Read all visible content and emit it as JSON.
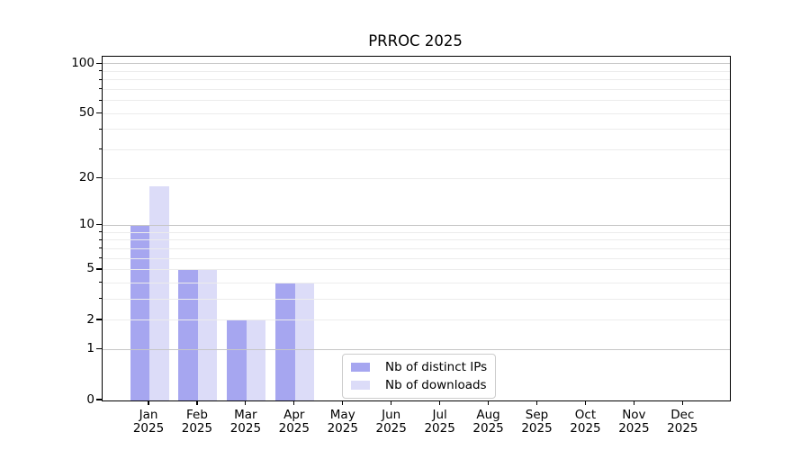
{
  "chart_data": {
    "type": "bar",
    "title": "PRROC 2025",
    "x_tick_months": [
      "Jan",
      "Feb",
      "Mar",
      "Apr",
      "May",
      "Jun",
      "Jul",
      "Aug",
      "Sep",
      "Oct",
      "Nov",
      "Dec"
    ],
    "x_tick_year": "2025",
    "series": [
      {
        "name": "Nb of distinct IPs",
        "color": "#a6a6f0",
        "values": [
          10,
          5,
          2,
          4,
          0,
          0,
          0,
          0,
          0,
          0,
          0,
          0
        ]
      },
      {
        "name": "Nb of downloads",
        "color": "#dcdcf8",
        "values": [
          18,
          5,
          2,
          4,
          0,
          0,
          0,
          0,
          0,
          0,
          0,
          0
        ]
      }
    ],
    "yscale": "log1p",
    "ylim": [
      0,
      111
    ],
    "y_tick_values": [
      0,
      1,
      2,
      5,
      10,
      20,
      50,
      100
    ],
    "y_tick_labels": [
      "0",
      "1",
      "2",
      "5",
      "10",
      "20",
      "50",
      "100"
    ],
    "y_major_gridlines": [
      1,
      10,
      100
    ],
    "y_minor_gridlines": [
      2,
      3,
      4,
      5,
      6,
      7,
      8,
      9,
      20,
      30,
      40,
      50,
      60,
      70,
      80,
      90
    ],
    "grid": "on",
    "legend_position": "lower center inside plot",
    "colors": {
      "grid_minor": "#ececec",
      "grid_major": "#c7c7c7",
      "spine": "#000000",
      "text": "#000000",
      "background": "#ffffff"
    }
  }
}
